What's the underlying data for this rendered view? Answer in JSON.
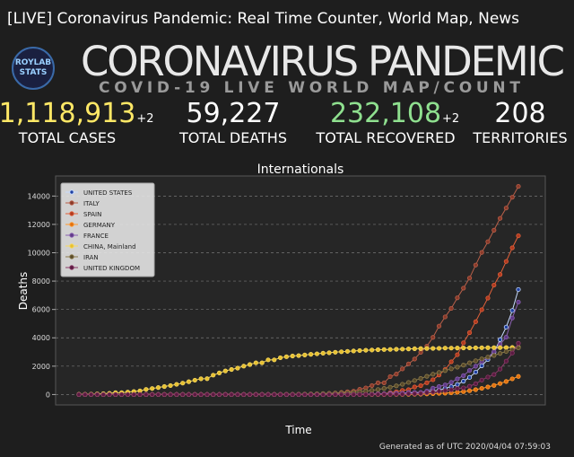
{
  "header": {
    "title": "[LIVE] Coronavirus Pandemic: Real Time Counter, World Map, News",
    "logo": [
      "ROYLAB",
      "STATS"
    ],
    "headline": "CORONAVIRUS PANDEMIC",
    "subheadline": "COVID-19 LIVE WORLD MAP/COUNT",
    "stats": [
      {
        "value": "1,118,913",
        "delta": "+2",
        "label": "TOTAL CASES"
      },
      {
        "value": "59,227",
        "label": "TOTAL DEATHS"
      },
      {
        "value": "232,108",
        "delta": "+2",
        "label": "TOTAL RECOVERED"
      },
      {
        "value": "208",
        "label": "TERRITORIES"
      }
    ]
  },
  "chart_data": {
    "type": "line",
    "title": "Internationals",
    "x_label": "Time",
    "y_label": "Deaths",
    "footnote": "Generated as of UTC 2020/04/04 07:59:03",
    "categories": [
      null,
      null,
      null,
      null,
      null,
      null,
      null,
      null,
      null,
      null,
      null,
      null,
      null,
      null,
      null,
      null,
      null,
      null,
      null,
      null,
      null,
      null,
      null,
      null,
      null,
      null,
      null,
      null,
      null,
      null,
      null,
      null,
      null,
      null,
      null,
      null,
      null,
      null,
      null,
      null,
      null,
      null,
      null,
      null,
      null,
      null,
      null,
      null,
      null,
      null,
      null,
      null,
      null,
      null,
      null,
      null,
      null,
      null,
      null,
      null,
      null,
      null,
      null,
      null,
      null,
      null,
      null,
      null,
      null,
      null,
      null,
      null,
      null
    ],
    "ylim": [
      -734,
      15415
    ],
    "yticks": [
      0,
      2000,
      4000,
      6000,
      8000,
      10000,
      12000,
      14000
    ],
    "grid": true,
    "legend": "upper left",
    "series": [
      {
        "name": "UNITED STATES",
        "color": "#c8dcff",
        "marker": "#1f3fa0",
        "values": [
          0,
          0,
          0,
          0,
          0,
          0,
          0,
          0,
          0,
          0,
          0,
          0,
          0,
          0,
          0,
          0,
          0,
          0,
          0,
          0,
          0,
          0,
          0,
          0,
          0,
          0,
          0,
          0,
          0,
          0,
          0,
          0,
          0,
          0,
          0,
          0,
          0,
          0,
          1,
          1,
          6,
          7,
          11,
          12,
          14,
          17,
          21,
          22,
          28,
          36,
          40,
          47,
          54,
          63,
          85,
          108,
          118,
          200,
          244,
          307,
          427,
          552,
          706,
          942,
          1209,
          1581,
          2026,
          2467,
          2978,
          3873,
          4757,
          5926,
          7406
        ]
      },
      {
        "name": "ITALY",
        "color": "#b8604a",
        "marker": "#8a3a2a",
        "values": [
          0,
          0,
          0,
          0,
          0,
          0,
          0,
          0,
          0,
          0,
          0,
          0,
          0,
          0,
          0,
          0,
          0,
          0,
          0,
          0,
          0,
          0,
          0,
          0,
          0,
          0,
          0,
          0,
          0,
          0,
          1,
          2,
          3,
          7,
          10,
          12,
          17,
          21,
          29,
          34,
          52,
          79,
          107,
          148,
          197,
          233,
          366,
          463,
          631,
          827,
          827,
          1266,
          1441,
          1809,
          2158,
          2503,
          2978,
          3405,
          4032,
          4825,
          5476,
          6077,
          6820,
          7503,
          8215,
          9134,
          10023,
          10779,
          11591,
          12428,
          13155,
          13915,
          14681
        ]
      },
      {
        "name": "SPAIN",
        "color": "#e0603a",
        "marker": "#b03a20",
        "values": [
          0,
          0,
          0,
          0,
          0,
          0,
          0,
          0,
          0,
          0,
          0,
          0,
          0,
          0,
          0,
          0,
          0,
          0,
          0,
          0,
          0,
          0,
          0,
          0,
          0,
          0,
          0,
          0,
          0,
          0,
          0,
          0,
          0,
          0,
          0,
          0,
          0,
          0,
          0,
          0,
          0,
          1,
          2,
          3,
          5,
          10,
          17,
          28,
          35,
          54,
          55,
          133,
          195,
          289,
          342,
          533,
          623,
          830,
          1043,
          1375,
          1772,
          2311,
          2808,
          3647,
          4365,
          5138,
          5982,
          6803,
          7716,
          8464,
          9387,
          10348,
          11198
        ]
      },
      {
        "name": "GERMANY",
        "color": "#ff9a30",
        "marker": "#e07010",
        "values": [
          0,
          0,
          0,
          0,
          0,
          0,
          0,
          0,
          0,
          0,
          0,
          0,
          0,
          0,
          0,
          0,
          0,
          0,
          0,
          0,
          0,
          0,
          0,
          0,
          0,
          0,
          0,
          0,
          0,
          0,
          0,
          0,
          0,
          0,
          0,
          0,
          0,
          0,
          0,
          0,
          0,
          0,
          0,
          0,
          0,
          0,
          0,
          2,
          2,
          3,
          3,
          7,
          9,
          11,
          17,
          24,
          28,
          44,
          67,
          84,
          94,
          123,
          157,
          206,
          267,
          342,
          433,
          533,
          645,
          775,
          920,
          1107,
          1275
        ]
      },
      {
        "name": "FRANCE",
        "color": "#8a60b0",
        "marker": "#603a88",
        "values": [
          0,
          0,
          0,
          0,
          0,
          0,
          0,
          0,
          0,
          0,
          0,
          0,
          0,
          0,
          0,
          0,
          0,
          0,
          0,
          0,
          0,
          0,
          0,
          0,
          1,
          1,
          1,
          1,
          1,
          1,
          1,
          1,
          1,
          1,
          1,
          2,
          2,
          2,
          2,
          2,
          3,
          4,
          4,
          6,
          9,
          11,
          19,
          19,
          33,
          48,
          48,
          79,
          91,
          91,
          149,
          149,
          149,
          244,
          451,
          563,
          676,
          862,
          1102,
          1333,
          1698,
          1997,
          2317,
          2611,
          3030,
          3532,
          4043,
          5398,
          6520
        ]
      },
      {
        "name": "CHINA, Mainland",
        "color": "#f5d860",
        "marker": "#e8c030",
        "values": [
          17,
          18,
          26,
          42,
          56,
          82,
          131,
          133,
          171,
          213,
          259,
          361,
          425,
          491,
          563,
          633,
          718,
          805,
          905,
          1012,
          1112,
          1117,
          1369,
          1521,
          1663,
          1766,
          1864,
          2003,
          2116,
          2238,
          2238,
          2443,
          2445,
          2595,
          2665,
          2717,
          2746,
          2790,
          2837,
          2872,
          2914,
          2947,
          2983,
          3015,
          3044,
          3072,
          3100,
          3123,
          3139,
          3161,
          3172,
          3180,
          3193,
          3203,
          3217,
          3230,
          3241,
          3249,
          3253,
          3259,
          3274,
          3274,
          3281,
          3285,
          3291,
          3296,
          3299,
          3304,
          3308,
          3309,
          3316,
          3322,
          3326
        ]
      },
      {
        "name": "IRAN",
        "color": "#8a7a4a",
        "marker": "#5a4a2a",
        "values": [
          0,
          0,
          0,
          0,
          0,
          0,
          0,
          0,
          0,
          0,
          0,
          0,
          0,
          0,
          0,
          0,
          0,
          0,
          0,
          0,
          0,
          0,
          0,
          0,
          0,
          0,
          0,
          0,
          2,
          2,
          4,
          5,
          8,
          12,
          16,
          19,
          26,
          34,
          43,
          54,
          66,
          77,
          92,
          107,
          124,
          145,
          194,
          237,
          291,
          354,
          429,
          514,
          611,
          724,
          853,
          988,
          1135,
          1284,
          1433,
          1556,
          1685,
          1812,
          1934,
          2077,
          2234,
          2378,
          2517,
          2640,
          2757,
          2898,
          3036,
          3160,
          3294
        ]
      },
      {
        "name": "UNITED KINGDOM",
        "color": "#8a3a68",
        "marker": "#5a1a40",
        "values": [
          0,
          0,
          0,
          0,
          0,
          0,
          0,
          0,
          0,
          0,
          0,
          0,
          0,
          0,
          0,
          0,
          0,
          0,
          0,
          0,
          0,
          0,
          0,
          0,
          0,
          0,
          0,
          0,
          0,
          0,
          0,
          0,
          0,
          0,
          0,
          0,
          0,
          0,
          0,
          0,
          0,
          0,
          0,
          1,
          2,
          2,
          3,
          4,
          6,
          8,
          8,
          8,
          21,
          21,
          56,
          56,
          72,
          138,
          178,
          234,
          282,
          336,
          423,
          466,
          580,
          761,
          1021,
          1231,
          1411,
          1793,
          2357,
          2926,
          3611
        ]
      }
    ]
  }
}
